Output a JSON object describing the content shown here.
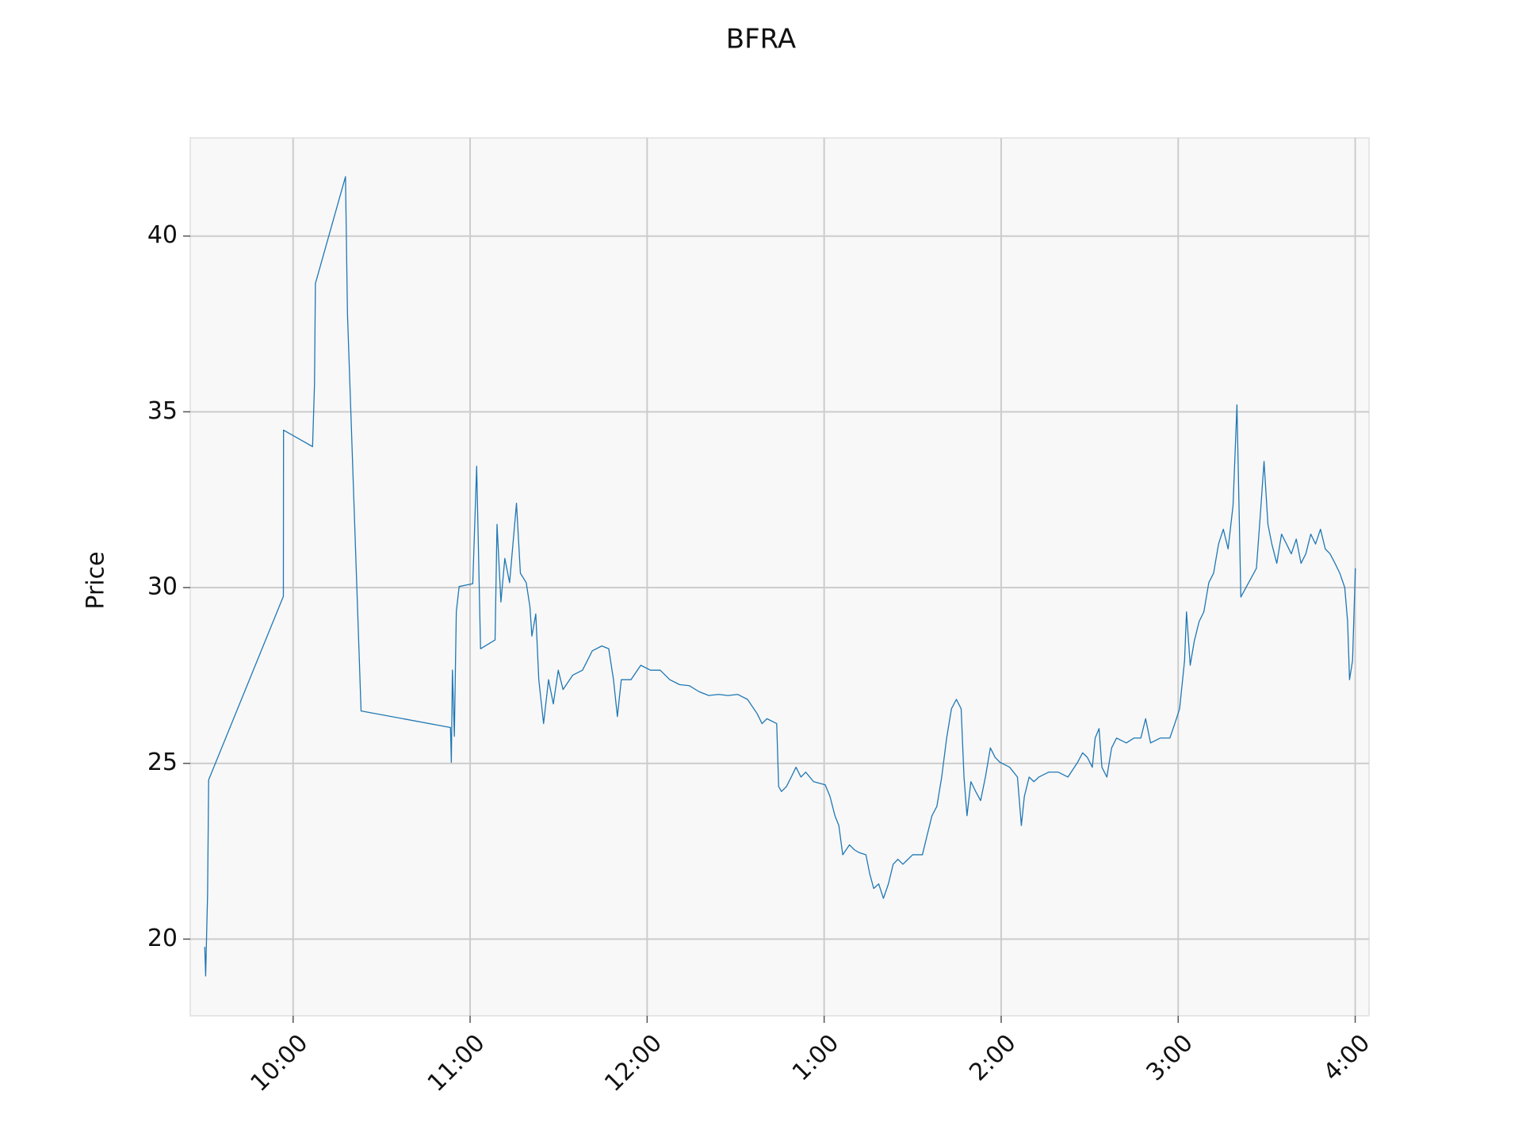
{
  "chart_data": {
    "type": "line",
    "title": "BFRA",
    "y_label": "Price",
    "color": "#1f77b4",
    "grid": true,
    "xlim": [
      9.419,
      16.078
    ],
    "ylim": [
      17.82,
      42.79
    ],
    "xticks": [
      {
        "value": 10,
        "label": "10:00"
      },
      {
        "value": 11,
        "label": "11:00"
      },
      {
        "value": 12,
        "label": "12:00"
      },
      {
        "value": 13,
        "label": "1:00"
      },
      {
        "value": 14,
        "label": "2:00"
      },
      {
        "value": 15,
        "label": "3:00"
      },
      {
        "value": 16,
        "label": "4:00"
      }
    ],
    "yticks": [
      20,
      25,
      30,
      35,
      40
    ],
    "x": [
      9.501,
      9.506,
      9.517,
      9.523,
      9.945,
      9.946,
      10.11,
      10.121,
      10.126,
      10.296,
      10.307,
      10.384,
      10.889,
      10.894,
      10.9,
      10.911,
      10.922,
      10.938,
      11.015,
      11.037,
      11.059,
      11.141,
      11.152,
      11.174,
      11.196,
      11.223,
      11.262,
      11.284,
      11.317,
      11.338,
      11.349,
      11.371,
      11.388,
      11.415,
      11.443,
      11.47,
      11.498,
      11.525,
      11.58,
      11.635,
      11.69,
      11.744,
      11.783,
      11.81,
      11.832,
      11.854,
      11.909,
      11.964,
      12.019,
      12.074,
      12.128,
      12.183,
      12.238,
      12.293,
      12.348,
      12.403,
      12.457,
      12.512,
      12.567,
      12.622,
      12.649,
      12.677,
      12.732,
      12.743,
      12.759,
      12.787,
      12.814,
      12.841,
      12.869,
      12.896,
      12.94,
      13.006,
      13.033,
      13.061,
      13.083,
      13.105,
      13.143,
      13.171,
      13.198,
      13.236,
      13.258,
      13.28,
      13.308,
      13.335,
      13.363,
      13.39,
      13.417,
      13.445,
      13.5,
      13.555,
      13.582,
      13.609,
      13.637,
      13.664,
      13.692,
      13.719,
      13.747,
      13.774,
      13.79,
      13.807,
      13.829,
      13.856,
      13.884,
      13.911,
      13.939,
      13.966,
      13.993,
      14.048,
      14.092,
      14.114,
      14.131,
      14.158,
      14.185,
      14.213,
      14.268,
      14.323,
      14.377,
      14.432,
      14.46,
      14.487,
      14.515,
      14.531,
      14.553,
      14.569,
      14.597,
      14.624,
      14.652,
      14.707,
      14.75,
      14.789,
      14.816,
      14.844,
      14.899,
      14.953,
      14.981,
      15.008,
      15.036,
      15.047,
      15.068,
      15.091,
      15.118,
      15.145,
      15.173,
      15.2,
      15.228,
      15.255,
      15.282,
      15.31,
      15.332,
      15.354,
      15.442,
      15.464,
      15.485,
      15.507,
      15.529,
      15.557,
      15.584,
      15.612,
      15.639,
      15.667,
      15.694,
      15.721,
      15.749,
      15.776,
      15.804,
      15.831,
      15.858,
      15.886,
      15.913,
      15.941,
      15.957,
      15.968,
      15.985,
      16.001
    ],
    "values": [
      19.78,
      18.95,
      21.3,
      24.53,
      29.75,
      34.48,
      34.01,
      35.8,
      38.65,
      41.69,
      37.82,
      26.49,
      26.02,
      25.03,
      27.65,
      25.77,
      29.31,
      30.03,
      30.11,
      33.45,
      28.26,
      28.51,
      31.8,
      29.59,
      30.83,
      30.14,
      32.4,
      30.41,
      30.14,
      29.45,
      28.62,
      29.25,
      27.38,
      26.13,
      27.38,
      26.69,
      27.65,
      27.1,
      27.51,
      27.65,
      28.2,
      28.34,
      28.26,
      27.38,
      26.33,
      27.38,
      27.38,
      27.79,
      27.65,
      27.65,
      27.38,
      27.24,
      27.21,
      27.04,
      26.93,
      26.96,
      26.93,
      26.96,
      26.82,
      26.41,
      26.13,
      26.27,
      26.13,
      24.34,
      24.2,
      24.34,
      24.61,
      24.89,
      24.61,
      24.75,
      24.48,
      24.39,
      24.06,
      23.51,
      23.23,
      22.4,
      22.68,
      22.54,
      22.46,
      22.4,
      21.85,
      21.44,
      21.57,
      21.16,
      21.57,
      22.13,
      22.27,
      22.13,
      22.4,
      22.4,
      22.96,
      23.51,
      23.78,
      24.61,
      25.72,
      26.55,
      26.82,
      26.55,
      24.61,
      23.51,
      24.48,
      24.2,
      23.94,
      24.61,
      25.44,
      25.17,
      25.03,
      24.89,
      24.61,
      23.23,
      24.06,
      24.61,
      24.48,
      24.61,
      24.75,
      24.75,
      24.61,
      25.03,
      25.3,
      25.17,
      24.89,
      25.72,
      25.99,
      24.89,
      24.61,
      25.44,
      25.72,
      25.58,
      25.72,
      25.72,
      26.27,
      25.58,
      25.72,
      25.72,
      26.13,
      26.55,
      27.92,
      29.31,
      27.79,
      28.48,
      29.03,
      29.31,
      30.14,
      30.41,
      31.24,
      31.66,
      31.1,
      32.34,
      35.2,
      29.73,
      30.55,
      32.07,
      33.59,
      31.8,
      31.24,
      30.69,
      31.52,
      31.24,
      30.96,
      31.38,
      30.69,
      30.96,
      31.52,
      31.24,
      31.66,
      31.1,
      30.96,
      30.69,
      30.41,
      30.0,
      29.04,
      27.38,
      27.92,
      30.55
    ]
  }
}
